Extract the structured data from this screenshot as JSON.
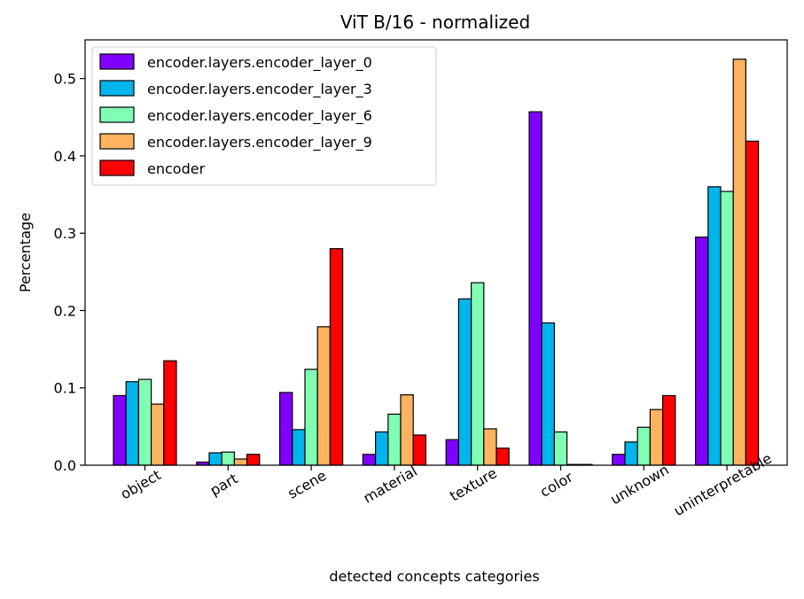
{
  "chart_data": {
    "type": "bar",
    "title": "ViT B/16 - normalized",
    "xlabel": "detected concepts categories",
    "ylabel": "Percentage",
    "ylim": [
      0,
      0.55
    ],
    "yticks": [
      0.0,
      0.1,
      0.2,
      0.3,
      0.4,
      0.5
    ],
    "ytick_labels": [
      "0.0",
      "0.1",
      "0.2",
      "0.3",
      "0.4",
      "0.5"
    ],
    "categories": [
      "object",
      "part",
      "scene",
      "material",
      "texture",
      "color",
      "unknown",
      "uninterpretable"
    ],
    "legend_position": "upper-left",
    "grid": false,
    "series": [
      {
        "name": "encoder.layers.encoder_layer_0",
        "color": "#8000ff",
        "values": [
          0.09,
          0.004,
          0.094,
          0.014,
          0.033,
          0.457,
          0.014,
          0.295
        ]
      },
      {
        "name": "encoder.layers.encoder_layer_3",
        "color": "#00b5eb",
        "values": [
          0.108,
          0.016,
          0.046,
          0.043,
          0.215,
          0.184,
          0.03,
          0.36
        ]
      },
      {
        "name": "encoder.layers.encoder_layer_6",
        "color": "#80ffb4",
        "values": [
          0.111,
          0.017,
          0.124,
          0.066,
          0.236,
          0.043,
          0.049,
          0.354
        ]
      },
      {
        "name": "encoder.layers.encoder_layer_9",
        "color": "#ffb360",
        "values": [
          0.079,
          0.008,
          0.179,
          0.091,
          0.047,
          0.001,
          0.072,
          0.525
        ]
      },
      {
        "name": "encoder",
        "color": "#ff0000",
        "values": [
          0.135,
          0.014,
          0.28,
          0.039,
          0.022,
          0.001,
          0.09,
          0.419
        ]
      }
    ]
  }
}
